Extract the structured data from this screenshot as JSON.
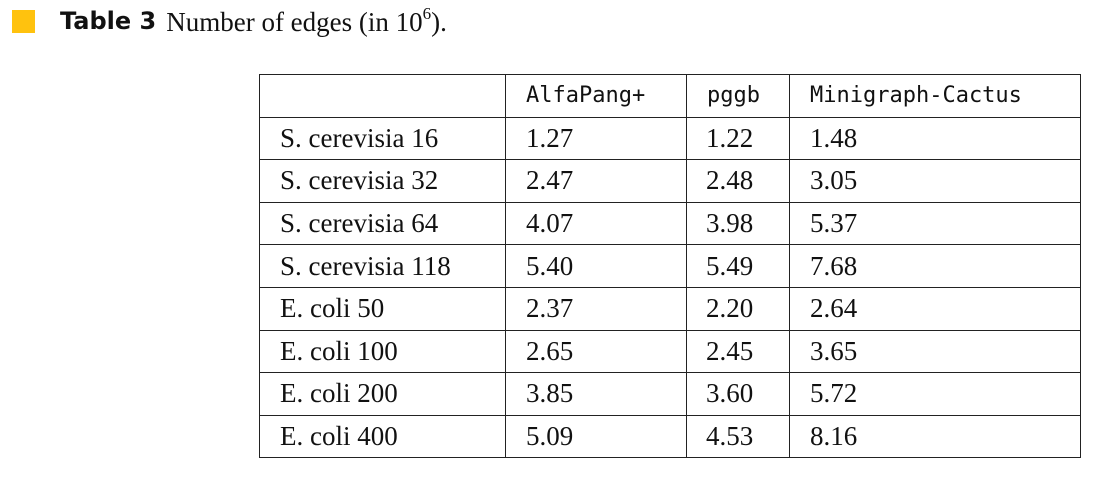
{
  "caption": {
    "marker_color": "#FFC20E",
    "label": "Table 3",
    "text": "Number of edges (in 10",
    "exponent": "6",
    "suffix": ")."
  },
  "table": {
    "columns": [
      "",
      "AlfaPang+",
      "pggb",
      "Minigraph-Cactus"
    ],
    "rows": [
      {
        "name": "S. cerevisia 16",
        "values": [
          "1.27",
          "1.22",
          "1.48"
        ]
      },
      {
        "name": "S. cerevisia 32",
        "values": [
          "2.47",
          "2.48",
          "3.05"
        ]
      },
      {
        "name": "S. cerevisia 64",
        "values": [
          "4.07",
          "3.98",
          "5.37"
        ]
      },
      {
        "name": "S. cerevisia 118",
        "values": [
          "5.40",
          "5.49",
          "7.68"
        ]
      },
      {
        "name": "E. coli 50",
        "values": [
          "2.37",
          "2.20",
          "2.64"
        ]
      },
      {
        "name": "E. coli 100",
        "values": [
          "2.65",
          "2.45",
          "3.65"
        ]
      },
      {
        "name": "E. coli 200",
        "values": [
          "3.85",
          "3.60",
          "5.72"
        ]
      },
      {
        "name": "E. coli 400",
        "values": [
          "5.09",
          "4.53",
          "8.16"
        ]
      }
    ]
  }
}
